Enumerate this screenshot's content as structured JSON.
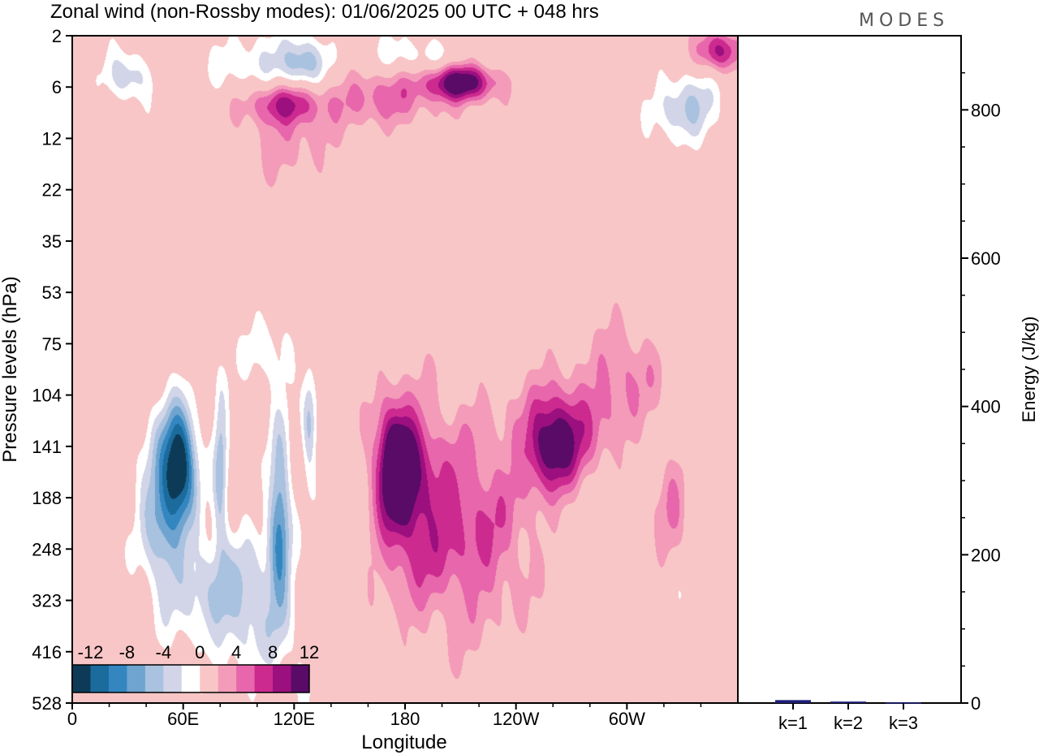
{
  "header": {
    "title": "Zonal wind (non-Rossby modes):  01/06/2025  00 UTC  + 048 hrs",
    "brand": "MODES"
  },
  "colors": {
    "negative": [
      "#0d3b57",
      "#1b6b9d",
      "#3486c0",
      "#6ea4cf",
      "#a9c2df",
      "#d2d5e8"
    ],
    "zero": "#ffffff",
    "positive": [
      "#f8c6c6",
      "#f39bb9",
      "#e766ac",
      "#cc2a8f",
      "#9b0f7f",
      "#5a0a67"
    ],
    "bar": "#1f1f7a",
    "axis": "#000000"
  },
  "chart_data": [
    {
      "type": "heatmap",
      "title": "Zonal wind (non-Rossby modes):  01/06/2025  00 UTC  + 048 hrs",
      "xlabel": "Longitude",
      "ylabel": "Pressure levels (hPa)",
      "x_ticks": [
        "0",
        "60E",
        "120E",
        "180",
        "120W",
        "60W"
      ],
      "x_tick_degrees": [
        0,
        60,
        120,
        180,
        240,
        300
      ],
      "xlim": [
        0,
        360
      ],
      "y_ticks": [
        "2",
        "6",
        "12",
        "22",
        "35",
        "53",
        "75",
        "104",
        "141",
        "188",
        "248",
        "323",
        "416",
        "528"
      ],
      "colorbar": {
        "labels": [
          "-12",
          "-8",
          "-4",
          "0",
          "4",
          "8",
          "12"
        ],
        "levels": [
          -14,
          -12,
          -10,
          -8,
          -6,
          -4,
          -2,
          2,
          4,
          6,
          8,
          10,
          12,
          14
        ]
      },
      "features": [
        {
          "lon": 58,
          "level": 8.3,
          "value": -15,
          "spread_lon": 9,
          "spread_level": 1.1
        },
        {
          "lon": 48,
          "level": 9.2,
          "value": -8,
          "spread_lon": 12,
          "spread_level": 1.6
        },
        {
          "lon": 80,
          "level": 8.4,
          "value": -7,
          "spread_lon": 4,
          "spread_level": 1.6
        },
        {
          "lon": 112,
          "level": 9.4,
          "value": -10,
          "spread_lon": 6,
          "spread_level": 1.8
        },
        {
          "lon": 128,
          "level": 7.5,
          "value": -7,
          "spread_lon": 4,
          "spread_level": 1.0
        },
        {
          "lon": 75,
          "level": 10.8,
          "value": -5,
          "spread_lon": 25,
          "spread_level": 1.2
        },
        {
          "lon": 100,
          "level": 11.2,
          "value": -4,
          "spread_lon": 20,
          "spread_level": 1.4
        },
        {
          "lon": 105,
          "level": 6.2,
          "value": -3,
          "spread_lon": 15,
          "spread_level": 0.8
        },
        {
          "lon": 125,
          "level": 12.5,
          "value": -2.5,
          "spread_lon": 6,
          "spread_level": 0.6
        },
        {
          "lon": 330,
          "level": 10.6,
          "value": -2.5,
          "spread_lon": 8,
          "spread_level": 0.8
        },
        {
          "lon": 30,
          "level": 0.8,
          "value": -6,
          "spread_lon": 12,
          "spread_level": 0.5
        },
        {
          "lon": 125,
          "level": 0.5,
          "value": -7,
          "spread_lon": 12,
          "spread_level": 0.5
        },
        {
          "lon": 100,
          "level": 0.6,
          "value": -4,
          "spread_lon": 25,
          "spread_level": 0.6
        },
        {
          "lon": 185,
          "level": 0.4,
          "value": -4,
          "spread_lon": 25,
          "spread_level": 0.4
        },
        {
          "lon": 332,
          "level": 1.4,
          "value": -6,
          "spread_lon": 18,
          "spread_level": 0.7
        },
        {
          "lon": 175,
          "level": 8.3,
          "value": 12,
          "spread_lon": 10,
          "spread_level": 1.0
        },
        {
          "lon": 180,
          "level": 9.0,
          "value": 7,
          "spread_lon": 18,
          "spread_level": 1.8
        },
        {
          "lon": 205,
          "level": 9.5,
          "value": 4.5,
          "spread_lon": 25,
          "spread_level": 2.2
        },
        {
          "lon": 230,
          "level": 9.6,
          "value": 3.5,
          "spread_lon": 25,
          "spread_level": 1.8
        },
        {
          "lon": 260,
          "level": 8.0,
          "value": 9,
          "spread_lon": 14,
          "spread_level": 0.9
        },
        {
          "lon": 270,
          "level": 7.6,
          "value": 5,
          "spread_lon": 28,
          "spread_level": 1.0
        },
        {
          "lon": 300,
          "level": 6.5,
          "value": 4,
          "spread_lon": 20,
          "spread_level": 0.9
        },
        {
          "lon": 325,
          "level": 9.5,
          "value": 4.5,
          "spread_lon": 9,
          "spread_level": 1.1
        },
        {
          "lon": 210,
          "level": 0.9,
          "value": 13,
          "spread_lon": 18,
          "spread_level": 0.35
        },
        {
          "lon": 170,
          "level": 1.2,
          "value": 5,
          "spread_lon": 30,
          "spread_level": 0.6
        },
        {
          "lon": 115,
          "level": 1.3,
          "value": 8,
          "spread_lon": 20,
          "spread_level": 0.4
        },
        {
          "lon": 350,
          "level": 0.3,
          "value": 9,
          "spread_lon": 12,
          "spread_level": 0.4
        },
        {
          "lon": 115,
          "level": 2.0,
          "value": 3,
          "spread_lon": 25,
          "spread_level": 0.8
        }
      ]
    },
    {
      "type": "bar",
      "ylabel": "Energy (J/kg)",
      "categories": [
        "k=1",
        "k=2",
        "k=3"
      ],
      "values": [
        4,
        2,
        1
      ],
      "ylim": [
        0,
        900
      ],
      "y_ticks": [
        0,
        200,
        400,
        600,
        800
      ]
    }
  ]
}
